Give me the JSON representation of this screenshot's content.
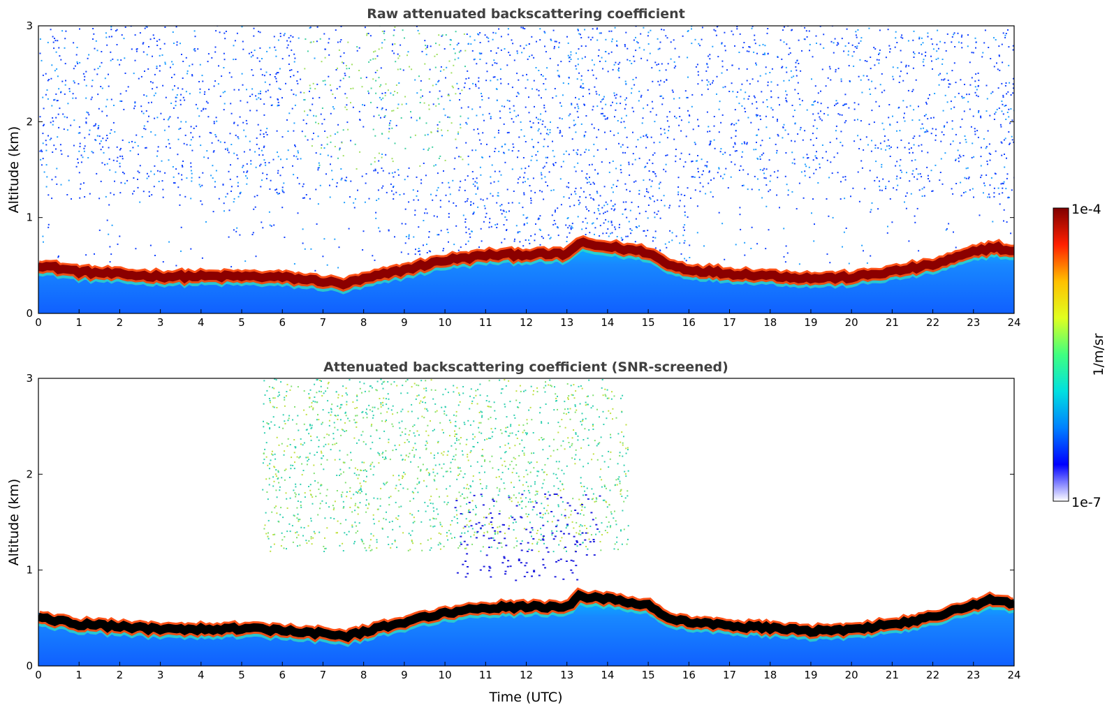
{
  "chart_data": [
    {
      "type": "heatmap",
      "title": "Raw attenuated backscattering coefficient",
      "xlabel": "",
      "ylabel": "Altitude (km)",
      "xlim": [
        0,
        24
      ],
      "ylim": [
        0,
        3
      ],
      "x_ticks": [
        "0",
        "1",
        "2",
        "3",
        "4",
        "5",
        "6",
        "7",
        "8",
        "9",
        "10",
        "11",
        "12",
        "13",
        "14",
        "15",
        "16",
        "17",
        "18",
        "19",
        "20",
        "21",
        "22",
        "23",
        "24"
      ],
      "y_ticks": [
        "0",
        "1",
        "2",
        "3"
      ],
      "layer_top_km": {
        "hours": [
          0,
          1,
          2,
          3,
          4,
          5,
          6,
          7,
          7.5,
          8,
          9,
          10,
          10.5,
          11,
          12,
          13,
          13.3,
          13.5,
          14,
          15,
          15.5,
          16,
          17,
          18,
          19,
          20,
          21,
          22,
          23,
          23.5,
          24
        ],
        "values": [
          0.55,
          0.48,
          0.45,
          0.43,
          0.43,
          0.43,
          0.42,
          0.38,
          0.35,
          0.4,
          0.5,
          0.6,
          0.62,
          0.65,
          0.66,
          0.66,
          0.78,
          0.76,
          0.74,
          0.68,
          0.55,
          0.5,
          0.46,
          0.44,
          0.41,
          0.42,
          0.48,
          0.55,
          0.68,
          0.74,
          0.68
        ]
      },
      "aerosol_plume_hours": [
        6.5,
        10.5
      ],
      "noise_level": "high"
    },
    {
      "type": "heatmap",
      "title": "Attenuated backscattering coefficient (SNR-screened)",
      "xlabel": "Time (UTC)",
      "ylabel": "Altitude (km)",
      "xlim": [
        0,
        24
      ],
      "ylim": [
        0,
        3
      ],
      "x_ticks": [
        "0",
        "1",
        "2",
        "3",
        "4",
        "5",
        "6",
        "7",
        "8",
        "9",
        "10",
        "11",
        "12",
        "13",
        "14",
        "15",
        "16",
        "17",
        "18",
        "19",
        "20",
        "21",
        "22",
        "23",
        "24"
      ],
      "y_ticks": [
        "0",
        "1",
        "2",
        "3"
      ],
      "layer_top_km": {
        "hours": [
          0,
          1,
          2,
          3,
          4,
          5,
          6,
          7,
          7.5,
          8,
          9,
          10,
          10.5,
          11,
          12,
          13,
          13.3,
          13.5,
          14,
          15,
          15.5,
          16,
          17,
          18,
          19,
          20,
          21,
          22,
          23,
          23.5,
          24
        ],
        "values": [
          0.55,
          0.48,
          0.45,
          0.43,
          0.43,
          0.43,
          0.42,
          0.38,
          0.35,
          0.4,
          0.5,
          0.6,
          0.62,
          0.65,
          0.66,
          0.66,
          0.78,
          0.76,
          0.74,
          0.68,
          0.55,
          0.5,
          0.46,
          0.44,
          0.41,
          0.42,
          0.48,
          0.55,
          0.68,
          0.74,
          0.68
        ]
      },
      "aerosol_plume_hours": [
        5.5,
        14.5
      ],
      "noise_level": "screened"
    }
  ],
  "colorbar": {
    "label": "1/m/sr",
    "max_label": "1e-4",
    "min_label": "1e-7",
    "colormap": "jet-with-white-low",
    "stops": [
      "#ffffff",
      "#0000ff",
      "#0080ff",
      "#00e0e0",
      "#40ff80",
      "#e0ff20",
      "#ffc000",
      "#ff2000",
      "#800000"
    ]
  },
  "colors": {
    "plume_raw": "#40d090",
    "layer_core": "#8b0000",
    "layer_core_screened": "#000000",
    "base_blue": "#1060ff",
    "title_gray": "#404040"
  }
}
